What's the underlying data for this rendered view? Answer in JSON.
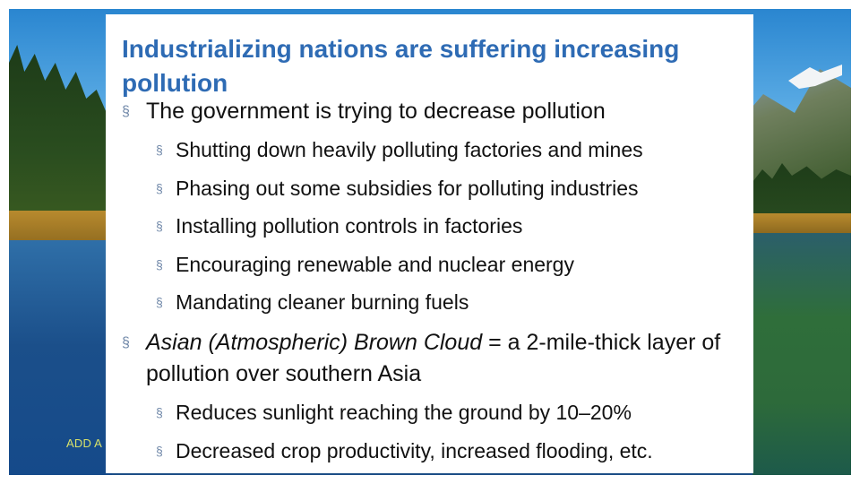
{
  "slide": {
    "title": "Industrializing nations are suffering increasing pollution",
    "bullets": [
      {
        "level": 1,
        "text": "The government is trying to decrease pollution"
      },
      {
        "level": 2,
        "text": "Shutting down heavily polluting factories and mines"
      },
      {
        "level": 2,
        "text": "Phasing out some subsidies for polluting industries"
      },
      {
        "level": 2,
        "text": "Installing pollution controls in factories"
      },
      {
        "level": 2,
        "text": "Encouraging renewable and nuclear energy"
      },
      {
        "level": 2,
        "text": "Mandating cleaner burning fuels"
      },
      {
        "level": 1,
        "term": "Asian (Atmospheric) Brown Cloud",
        "text": " = a 2-mile-thick layer of pollution over southern Asia"
      },
      {
        "level": 2,
        "text": "Reduces sunlight reaching the ground by 10–20%"
      },
      {
        "level": 2,
        "text": "Decreased crop productivity, increased flooding, etc."
      }
    ],
    "bullet_marker": "§",
    "footer": "ADD A"
  },
  "colors": {
    "title": "#2e6bb4",
    "bullet_marker": "#6f87a8",
    "body_text": "#111111",
    "footer_text": "#d8e26a"
  }
}
